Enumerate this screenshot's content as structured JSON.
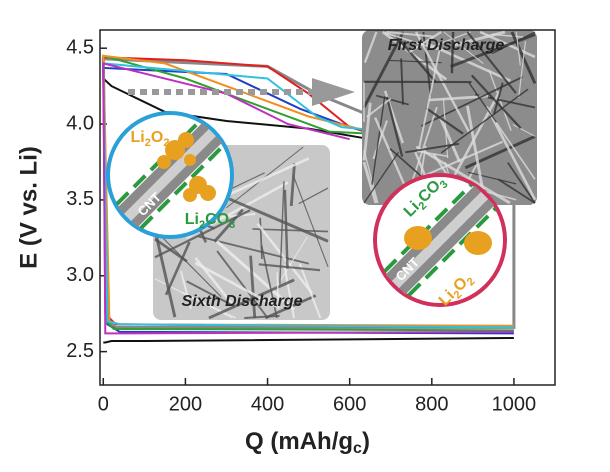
{
  "chart_data": {
    "type": "line",
    "xlabel": [
      "Q  (mAh/g",
      "c",
      ")"
    ],
    "ylabel": "E  (V vs. Li)",
    "xlim": [
      -8,
      1100
    ],
    "xticks": [
      0,
      200,
      400,
      600,
      800,
      1000
    ],
    "ylim": [
      2.28,
      4.62
    ],
    "yticks": [
      2.5,
      {
        "value": 3.0,
        "label": "3.0"
      },
      3.5,
      {
        "value": 4.0,
        "label": "4.0"
      },
      4.5
    ],
    "series": [
      {
        "color": "#888888",
        "x": [
          700,
          520,
          400,
          0,
          10,
          30,
          1000,
          1000
        ],
        "values": [
          4.0,
          4.2,
          4.38,
          4.43,
          2.7,
          2.66,
          2.66,
          3.9
        ]
      },
      {
        "color": "#111111",
        "x": [
          0,
          5,
          20,
          100,
          1000,
          null,
          0,
          20,
          150,
          300,
          500,
          650
        ],
        "values": [
          2.56,
          2.56,
          2.57,
          2.57,
          2.59,
          null,
          4.3,
          4.25,
          4.08,
          4.02,
          3.97,
          3.9
        ]
      },
      {
        "color": "#e02020",
        "x": [
          700,
          600,
          500,
          400,
          200,
          0,
          5,
          30,
          1000
        ],
        "values": [
          3.9,
          3.98,
          4.2,
          4.38,
          4.42,
          4.44,
          2.75,
          2.68,
          2.66
        ]
      },
      {
        "color": "#2040c0",
        "x": [
          680,
          580,
          480,
          300,
          0,
          10,
          40,
          1000
        ],
        "values": [
          3.92,
          4.0,
          4.1,
          4.33,
          4.37,
          2.68,
          2.63,
          2.62
        ]
      },
      {
        "color": "#30a030",
        "x": [
          700,
          550,
          400,
          200,
          0,
          8,
          25,
          1000
        ],
        "values": [
          3.93,
          3.95,
          4.1,
          4.3,
          4.45,
          2.7,
          2.65,
          2.64
        ]
      },
      {
        "color": "#f09020",
        "x": [
          650,
          500,
          350,
          150,
          0,
          15,
          40,
          1000
        ],
        "values": [
          3.95,
          4.05,
          4.2,
          4.4,
          4.45,
          2.7,
          2.68,
          2.67
        ]
      },
      {
        "color": "#30c0e0",
        "x": [
          700,
          580,
          520,
          400,
          0,
          10,
          40,
          1000
        ],
        "values": [
          3.95,
          3.98,
          4.05,
          4.3,
          4.4,
          2.7,
          2.68,
          2.66
        ]
      },
      {
        "color": "#c030c0",
        "x": [
          600,
          450,
          300,
          0,
          5,
          1000
        ],
        "values": [
          3.9,
          4.0,
          4.2,
          4.4,
          2.62,
          2.63
        ]
      }
    ],
    "annotations": {
      "first": "First Discharge",
      "sixth": "Sixth Discharge",
      "cnt1": "CNT",
      "cnt2": "CNT",
      "o2a": [
        "Li",
        "2",
        "O",
        "2"
      ],
      "co3a": [
        "Li",
        "2",
        "CO",
        "3"
      ],
      "o2b": [
        "Li",
        "2",
        "O",
        "2"
      ],
      "co3b": [
        "Li",
        "2",
        "CO",
        "3"
      ]
    }
  }
}
